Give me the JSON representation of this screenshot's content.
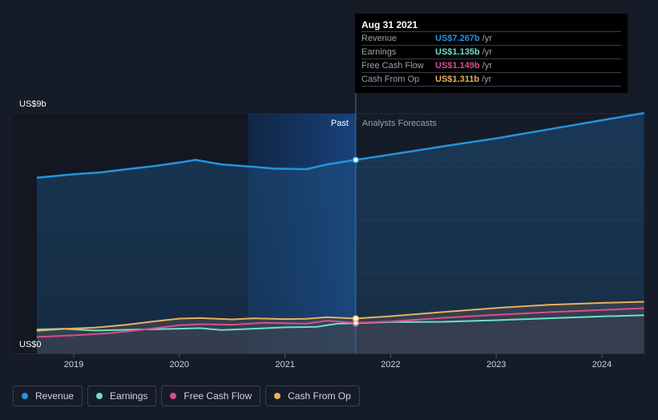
{
  "tooltip": {
    "date": "Aug 31 2021",
    "rows": [
      {
        "label": "Revenue",
        "value": "US$7.267b",
        "unit": "/yr",
        "color": "#2394df"
      },
      {
        "label": "Earnings",
        "value": "US$1.135b",
        "unit": "/yr",
        "color": "#6ee0c6"
      },
      {
        "label": "Free Cash Flow",
        "value": "US$1.149b",
        "unit": "/yr",
        "color": "#d94f8b"
      },
      {
        "label": "Cash From Op",
        "value": "US$1.311b",
        "unit": "/yr",
        "color": "#e8b15c"
      }
    ]
  },
  "legend": [
    {
      "label": "Revenue",
      "color": "#2394df"
    },
    {
      "label": "Earnings",
      "color": "#6ee0c6"
    },
    {
      "label": "Free Cash Flow",
      "color": "#d94f8b"
    },
    {
      "label": "Cash From Op",
      "color": "#e8b15c"
    }
  ],
  "chart_data": {
    "type": "area",
    "y_unit_labels": {
      "top": "US$9b",
      "bottom": "US$0"
    },
    "ylim": [
      0,
      9
    ],
    "xlim": [
      2018.65,
      2024.4
    ],
    "x_ticks": [
      "2019",
      "2020",
      "2021",
      "2022",
      "2023",
      "2024"
    ],
    "x_tick_values": [
      2019,
      2020,
      2021,
      2022,
      2023,
      2024
    ],
    "past_label": "Past",
    "forecast_label": "Analysts Forecasts",
    "divider_x": 2021.67,
    "shade_start_x": 2020.65,
    "series": [
      {
        "name": "Revenue",
        "color": "#2394df",
        "points": [
          [
            2018.65,
            6.6
          ],
          [
            2019.0,
            6.73
          ],
          [
            2019.25,
            6.8
          ],
          [
            2019.5,
            6.92
          ],
          [
            2019.75,
            7.03
          ],
          [
            2020.0,
            7.17
          ],
          [
            2020.15,
            7.27
          ],
          [
            2020.4,
            7.1
          ],
          [
            2020.7,
            7.01
          ],
          [
            2020.9,
            6.94
          ],
          [
            2021.2,
            6.92
          ],
          [
            2021.4,
            7.1
          ],
          [
            2021.67,
            7.27
          ],
          [
            2022.0,
            7.47
          ],
          [
            2022.5,
            7.78
          ],
          [
            2023.0,
            8.08
          ],
          [
            2023.5,
            8.42
          ],
          [
            2024.0,
            8.76
          ],
          [
            2024.4,
            9.03
          ]
        ]
      },
      {
        "name": "Earnings",
        "color": "#6ee0c6",
        "points": [
          [
            2018.65,
            0.9
          ],
          [
            2018.9,
            0.93
          ],
          [
            2019.2,
            0.86
          ],
          [
            2019.6,
            0.9
          ],
          [
            2020.0,
            0.93
          ],
          [
            2020.2,
            0.95
          ],
          [
            2020.4,
            0.88
          ],
          [
            2020.7,
            0.93
          ],
          [
            2021.0,
            0.98
          ],
          [
            2021.3,
            1.0
          ],
          [
            2021.5,
            1.12
          ],
          [
            2021.67,
            1.135
          ],
          [
            2022.0,
            1.18
          ],
          [
            2022.5,
            1.19
          ],
          [
            2023.0,
            1.25
          ],
          [
            2023.5,
            1.32
          ],
          [
            2024.0,
            1.39
          ],
          [
            2024.4,
            1.44
          ]
        ]
      },
      {
        "name": "Free Cash Flow",
        "color": "#d94f8b",
        "points": [
          [
            2018.65,
            0.62
          ],
          [
            2019.0,
            0.68
          ],
          [
            2019.3,
            0.75
          ],
          [
            2019.6,
            0.87
          ],
          [
            2020.0,
            1.06
          ],
          [
            2020.2,
            1.1
          ],
          [
            2020.5,
            1.08
          ],
          [
            2020.8,
            1.15
          ],
          [
            2021.2,
            1.12
          ],
          [
            2021.4,
            1.23
          ],
          [
            2021.67,
            1.149
          ],
          [
            2022.0,
            1.2
          ],
          [
            2022.5,
            1.34
          ],
          [
            2023.0,
            1.45
          ],
          [
            2023.5,
            1.55
          ],
          [
            2024.0,
            1.63
          ],
          [
            2024.4,
            1.7
          ]
        ]
      },
      {
        "name": "Cash From Op",
        "color": "#e8b15c",
        "points": [
          [
            2018.65,
            0.85
          ],
          [
            2018.9,
            0.92
          ],
          [
            2019.2,
            0.97
          ],
          [
            2019.5,
            1.08
          ],
          [
            2019.75,
            1.2
          ],
          [
            2020.0,
            1.31
          ],
          [
            2020.2,
            1.33
          ],
          [
            2020.5,
            1.28
          ],
          [
            2020.7,
            1.32
          ],
          [
            2021.0,
            1.29
          ],
          [
            2021.2,
            1.3
          ],
          [
            2021.4,
            1.36
          ],
          [
            2021.67,
            1.311
          ],
          [
            2022.0,
            1.4
          ],
          [
            2022.5,
            1.56
          ],
          [
            2023.0,
            1.71
          ],
          [
            2023.5,
            1.83
          ],
          [
            2024.0,
            1.9
          ],
          [
            2024.4,
            1.94
          ]
        ]
      }
    ]
  }
}
